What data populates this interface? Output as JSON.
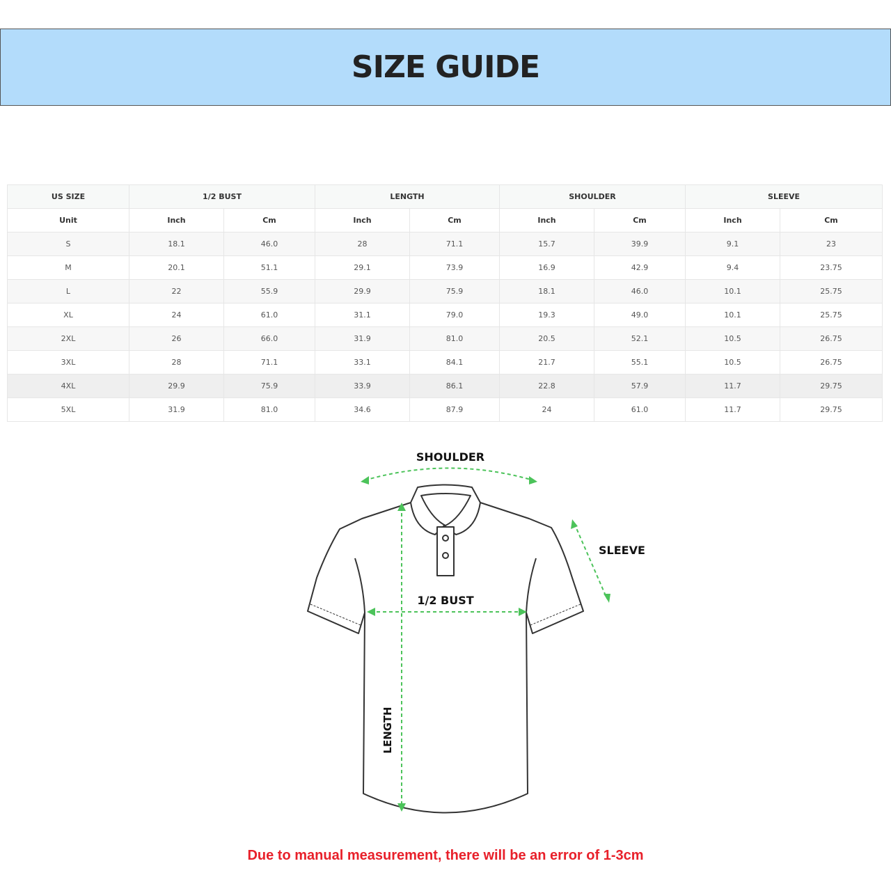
{
  "title": "SIZE GUIDE",
  "table": {
    "groups": [
      "US SIZE",
      "1/2 BUST",
      "LENGTH",
      "SHOULDER",
      "SLEEVE"
    ],
    "units": [
      "Unit",
      "Inch",
      "Cm",
      "Inch",
      "Cm",
      "Inch",
      "Cm",
      "Inch",
      "Cm"
    ],
    "rows": [
      [
        "S",
        "18.1",
        "46.0",
        "28",
        "71.1",
        "15.7",
        "39.9",
        "9.1",
        "23"
      ],
      [
        "M",
        "20.1",
        "51.1",
        "29.1",
        "73.9",
        "16.9",
        "42.9",
        "9.4",
        "23.75"
      ],
      [
        "L",
        "22",
        "55.9",
        "29.9",
        "75.9",
        "18.1",
        "46.0",
        "10.1",
        "25.75"
      ],
      [
        "XL",
        "24",
        "61.0",
        "31.1",
        "79.0",
        "19.3",
        "49.0",
        "10.1",
        "25.75"
      ],
      [
        "2XL",
        "26",
        "66.0",
        "31.9",
        "81.0",
        "20.5",
        "52.1",
        "10.5",
        "26.75"
      ],
      [
        "3XL",
        "28",
        "71.1",
        "33.1",
        "84.1",
        "21.7",
        "55.1",
        "10.5",
        "26.75"
      ],
      [
        "4XL",
        "29.9",
        "75.9",
        "33.9",
        "86.1",
        "22.8",
        "57.9",
        "11.7",
        "29.75"
      ],
      [
        "5XL",
        "31.9",
        "81.0",
        "34.6",
        "87.9",
        "24",
        "61.0",
        "11.7",
        "29.75"
      ]
    ]
  },
  "diagram": {
    "shoulder": "SHOULDER",
    "sleeve": "SLEEVE",
    "bust": "1/2 BUST",
    "length": "LENGTH",
    "arrow_color": "#4cc35a"
  },
  "note": "Due to manual measurement, there will be an error of 1-3cm"
}
